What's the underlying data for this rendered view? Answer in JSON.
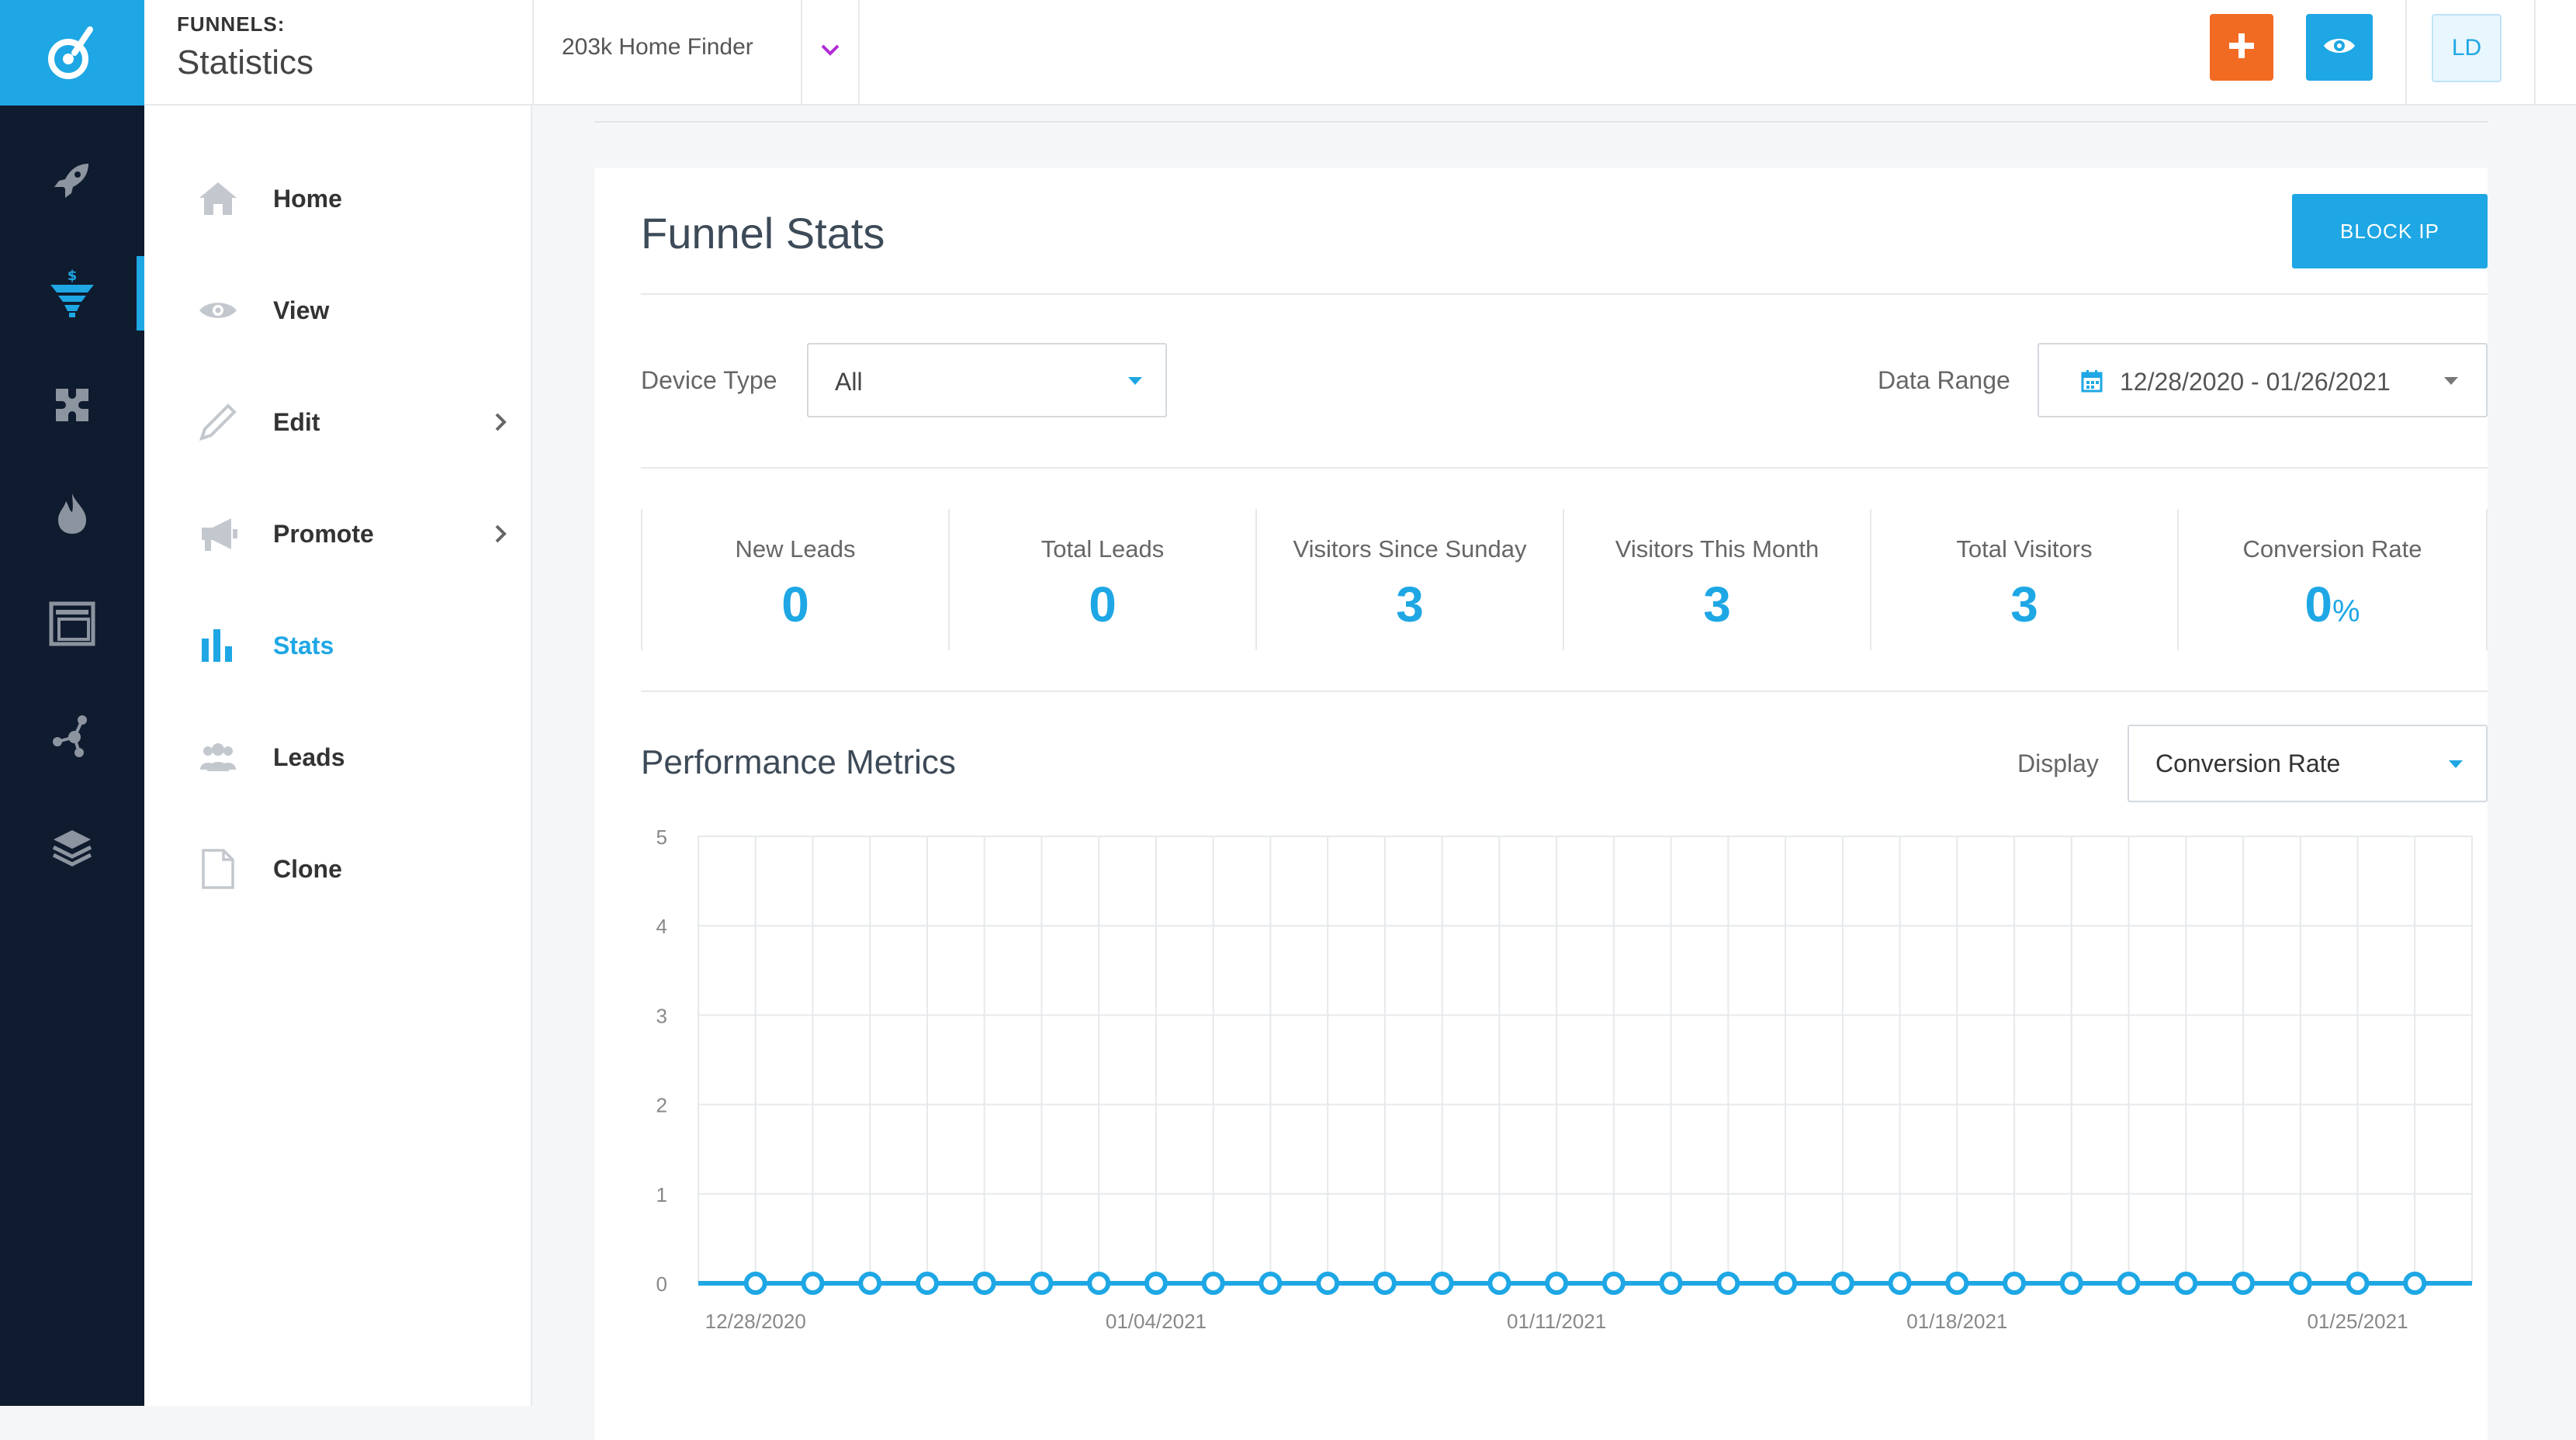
{
  "topbar": {
    "section": "FUNNELS:",
    "page": "Statistics",
    "funnel_name": "203k Home Finder",
    "avatar_initials": "LD"
  },
  "rail": {
    "icons": [
      "logo-icon",
      "rocket-icon",
      "funnel-dollar-icon",
      "puzzle-icon",
      "flame-icon",
      "window-icon",
      "integrations-icon",
      "layers-icon"
    ],
    "active": "funnel-dollar-icon"
  },
  "subnav": {
    "items": [
      {
        "label": "Home",
        "icon": "home-icon"
      },
      {
        "label": "View",
        "icon": "eye-icon"
      },
      {
        "label": "Edit",
        "icon": "pencil-icon",
        "has_submenu": true
      },
      {
        "label": "Promote",
        "icon": "megaphone-icon",
        "has_submenu": true
      },
      {
        "label": "Stats",
        "icon": "bar-chart-icon",
        "active": true
      },
      {
        "label": "Leads",
        "icon": "people-icon"
      },
      {
        "label": "Clone",
        "icon": "document-icon"
      }
    ]
  },
  "main": {
    "title": "Funnel Stats",
    "block_ip_label": "BLOCK IP",
    "device_type_label": "Device Type",
    "device_type_value": "All",
    "date_range_label": "Data Range",
    "date_range_value": "12/28/2020 - 01/26/2021",
    "stats": [
      {
        "label": "New Leads",
        "value": "0"
      },
      {
        "label": "Total Leads",
        "value": "0"
      },
      {
        "label": "Visitors Since Sunday",
        "value": "3"
      },
      {
        "label": "Visitors This Month",
        "value": "3"
      },
      {
        "label": "Total Visitors",
        "value": "3"
      },
      {
        "label": "Conversion Rate",
        "value": "0",
        "unit": "%"
      }
    ],
    "performance_title": "Performance Metrics",
    "display_label": "Display",
    "display_value": "Conversion Rate"
  },
  "colors": {
    "accent": "#1ea7e4",
    "add_button": "#f26b22",
    "rail_bg": "#0f1b2e"
  },
  "chart_data": {
    "type": "line",
    "x": [
      "12/28/2020",
      "12/29/2020",
      "12/30/2020",
      "12/31/2020",
      "01/01/2021",
      "01/02/2021",
      "01/03/2021",
      "01/04/2021",
      "01/05/2021",
      "01/06/2021",
      "01/07/2021",
      "01/08/2021",
      "01/09/2021",
      "01/10/2021",
      "01/11/2021",
      "01/12/2021",
      "01/13/2021",
      "01/14/2021",
      "01/15/2021",
      "01/16/2021",
      "01/17/2021",
      "01/18/2021",
      "01/19/2021",
      "01/20/2021",
      "01/21/2021",
      "01/22/2021",
      "01/23/2021",
      "01/24/2021",
      "01/25/2021",
      "01/26/2021"
    ],
    "x_tick_labels": [
      "12/28/2020",
      "01/04/2021",
      "01/11/2021",
      "01/18/2021",
      "01/25/2021"
    ],
    "series": [
      {
        "values": [
          0,
          0,
          0,
          0,
          0,
          0,
          0,
          0,
          0,
          0,
          0,
          0,
          0,
          0,
          0,
          0,
          0,
          0,
          0,
          0,
          0,
          0,
          0,
          0,
          0,
          0,
          0,
          0,
          0,
          0
        ]
      }
    ],
    "ylim": [
      0,
      5
    ],
    "yticks": [
      0,
      1,
      2,
      3,
      4,
      5
    ],
    "grid": true,
    "title": "",
    "xlabel": "",
    "ylabel": ""
  }
}
